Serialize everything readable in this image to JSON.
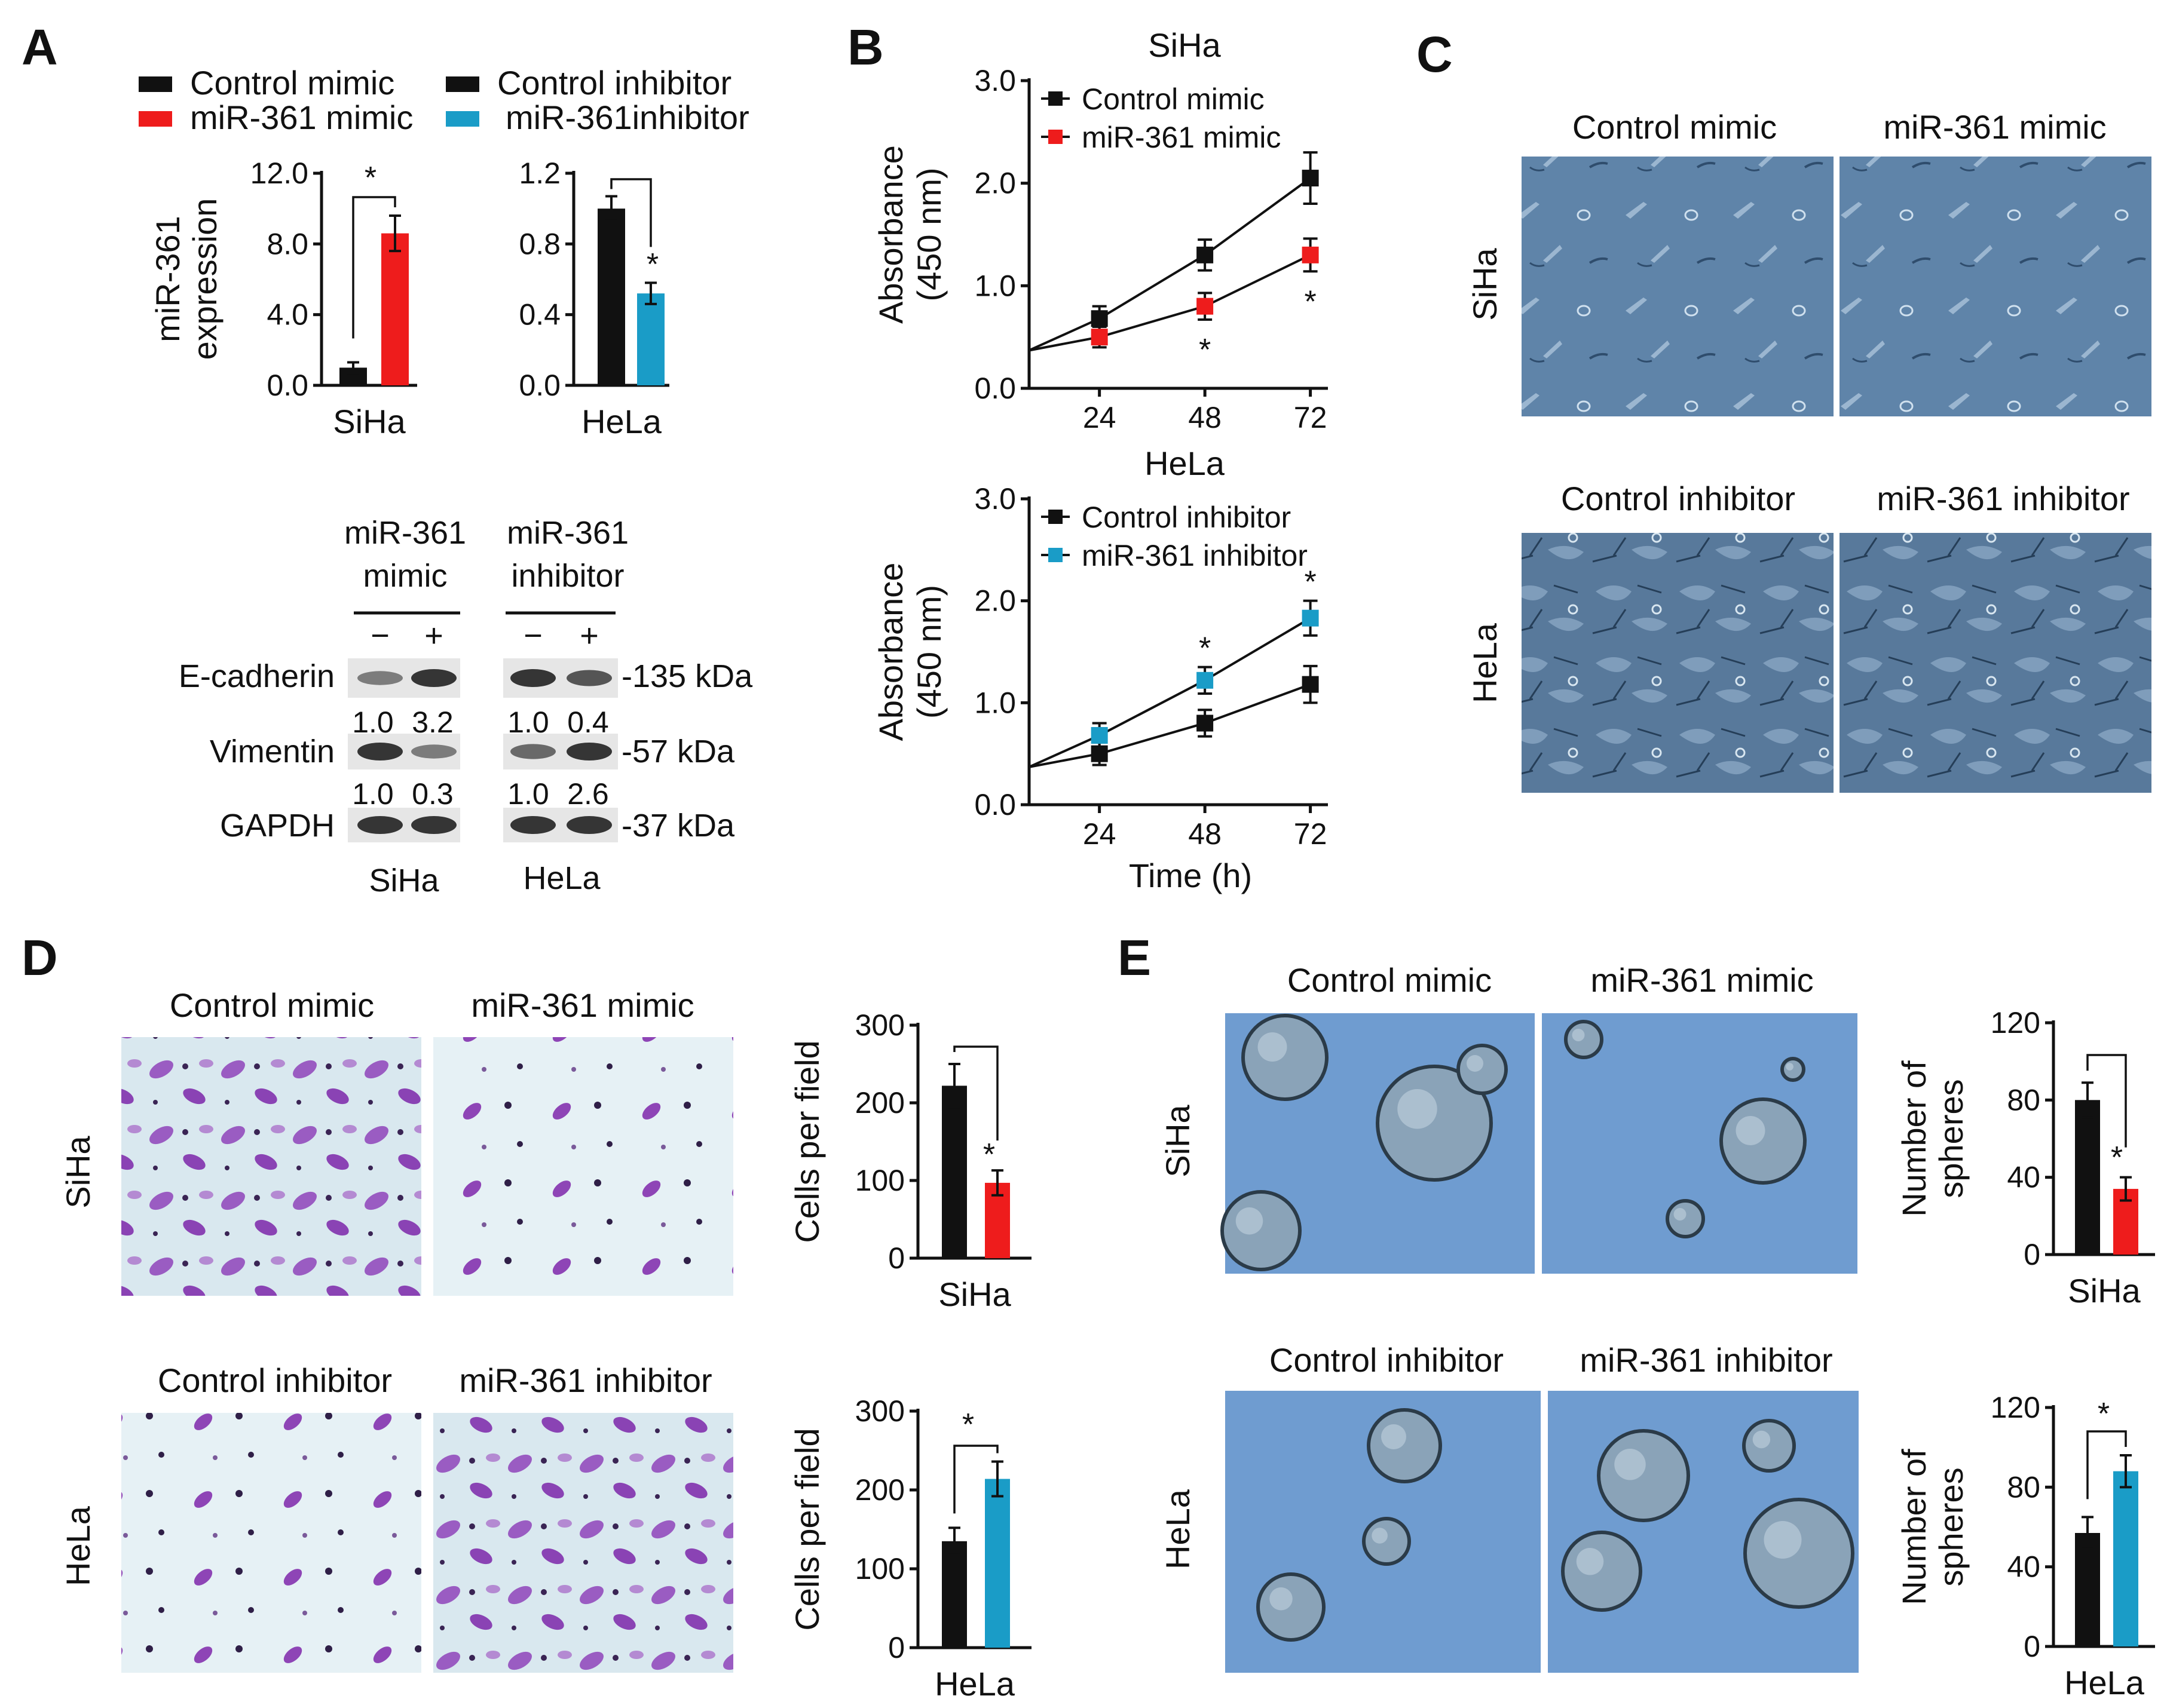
{
  "colors": {
    "control": "#111111",
    "mimic": "#ee1c1c",
    "inhibitor": "#1a9cc7",
    "micro_blue": "#5e83a8",
    "micro_blue_light": "#8aa7c4",
    "crystal_bg": "#dcebf0",
    "crystal_purple": "#8e45b6",
    "sphere_bg": "#6f9cd0",
    "blot_band": "#2b2b2b",
    "blot_bg": "#e6e6e6"
  },
  "panel_labels": {
    "a": "A",
    "b": "B",
    "c": "C",
    "d": "D",
    "e": "E"
  },
  "conditions": {
    "control_mimic": "Control mimic",
    "mir361_mimic": "miR-361 mimic",
    "control_inhibitor": "Control inhibitor",
    "mir361_inhibitor": "miR-361 inhibitor",
    "mir361_inhibitor_legend": "miR-361inhibitor"
  },
  "cell_lines": {
    "siha": "SiHa",
    "hela": "HeLa"
  },
  "significance_marker": "*",
  "western_blot": {
    "group_mimic": [
      "miR-361",
      "mimic"
    ],
    "group_inhibitor": [
      "miR-361",
      "inhibitor"
    ],
    "minus": "−",
    "plus": "+",
    "proteins": [
      {
        "name": "E-cadherin",
        "size": "-135 kDa",
        "siha": [
          "1.0",
          "3.2"
        ],
        "hela": [
          "1.0",
          "0.4"
        ]
      },
      {
        "name": "Vimentin",
        "size": "-57 kDa",
        "siha": [
          "1.0",
          "0.3"
        ],
        "hela": [
          "1.0",
          "2.6"
        ]
      },
      {
        "name": "GAPDH",
        "size": "-37 kDa"
      }
    ]
  },
  "chart_data": [
    {
      "id": "A-SiHa",
      "type": "bar",
      "categories": [
        "Control mimic",
        "miR-361 mimic"
      ],
      "values": [
        1.0,
        8.6
      ],
      "errors": [
        0.3,
        1.0
      ],
      "ylabel": [
        "miR-361",
        "expression"
      ],
      "ylim": [
        0,
        12
      ],
      "yticks": [
        "0.0",
        "4.0",
        "8.0",
        "12.0"
      ],
      "xlabel": "SiHa",
      "significant": true
    },
    {
      "id": "A-HeLa",
      "type": "bar",
      "categories": [
        "Control inhibitor",
        "miR-361 inhibitor"
      ],
      "values": [
        1.0,
        0.52
      ],
      "errors": [
        0.07,
        0.06
      ],
      "ylim": [
        0,
        1.2
      ],
      "yticks": [
        "0.0",
        "0.4",
        "0.8",
        "1.2"
      ],
      "xlabel": "HeLa",
      "significant": true
    },
    {
      "id": "B-SiHa",
      "type": "line",
      "title": "SiHa",
      "x": [
        8,
        24,
        48,
        72
      ],
      "xticks": [
        "24",
        "48",
        "72"
      ],
      "xlim": [
        8,
        76
      ],
      "ylim": [
        0,
        3
      ],
      "yticks": [
        "0.0",
        "1.0",
        "2.0",
        "3.0"
      ],
      "ylabel": [
        "Absorbance",
        "(450 nm)"
      ],
      "series": [
        {
          "name": "Control mimic",
          "values": [
            0.37,
            0.68,
            1.3,
            2.05
          ],
          "errors": [
            null,
            0.12,
            0.15,
            0.25
          ]
        },
        {
          "name": "miR-361 mimic",
          "values": [
            0.37,
            0.5,
            0.8,
            1.3
          ],
          "errors": [
            null,
            0.1,
            0.13,
            0.16
          ]
        }
      ],
      "stars_at": [
        48,
        72
      ]
    },
    {
      "id": "B-HeLa",
      "type": "line",
      "title": "HeLa",
      "x": [
        8,
        24,
        48,
        72
      ],
      "xticks": [
        "24",
        "48",
        "72"
      ],
      "xlim": [
        8,
        76
      ],
      "ylim": [
        0,
        3
      ],
      "yticks": [
        "0.0",
        "1.0",
        "2.0",
        "3.0"
      ],
      "ylabel": [
        "Absorbance",
        "(450 nm)"
      ],
      "xlabel": "Time (h)",
      "series": [
        {
          "name": "Control inhibitor",
          "values": [
            0.37,
            0.5,
            0.8,
            1.18
          ],
          "errors": [
            null,
            0.11,
            0.13,
            0.18
          ]
        },
        {
          "name": "miR-361 inhibitor",
          "values": [
            0.37,
            0.68,
            1.22,
            1.83
          ],
          "errors": [
            null,
            0.12,
            0.13,
            0.17
          ]
        }
      ],
      "stars_at": [
        48,
        72
      ]
    },
    {
      "id": "D-SiHa",
      "type": "bar",
      "categories": [
        "Control mimic",
        "miR-361 mimic"
      ],
      "values": [
        222,
        97
      ],
      "errors": [
        28,
        16
      ],
      "ylim": [
        0,
        300
      ],
      "yticks": [
        "0",
        "100",
        "200",
        "300"
      ],
      "ylabel": [
        "Cells per field"
      ],
      "xlabel": "SiHa",
      "significant": true
    },
    {
      "id": "D-HeLa",
      "type": "bar",
      "categories": [
        "Control inhibitor",
        "miR-361 inhibitor"
      ],
      "values": [
        135,
        214
      ],
      "errors": [
        17,
        22
      ],
      "ylim": [
        0,
        300
      ],
      "yticks": [
        "0",
        "100",
        "200",
        "300"
      ],
      "ylabel": [
        "Cells per field"
      ],
      "xlabel": "HeLa",
      "significant": true
    },
    {
      "id": "E-SiHa",
      "type": "bar",
      "categories": [
        "Control mimic",
        "miR-361 mimic"
      ],
      "values": [
        80,
        34
      ],
      "errors": [
        9,
        6
      ],
      "ylim": [
        0,
        120
      ],
      "yticks": [
        "0",
        "40",
        "80",
        "120"
      ],
      "ylabel": [
        "Number of",
        "spheres"
      ],
      "xlabel": "SiHa",
      "significant": true
    },
    {
      "id": "E-HeLa",
      "type": "bar",
      "categories": [
        "Control inhibitor",
        "miR-361 inhibitor"
      ],
      "values": [
        57,
        88
      ],
      "errors": [
        8,
        8
      ],
      "ylim": [
        0,
        120
      ],
      "yticks": [
        "0",
        "40",
        "80",
        "120"
      ],
      "ylabel": [
        "Number of",
        "spheres"
      ],
      "xlabel": "HeLa",
      "significant": true
    }
  ]
}
